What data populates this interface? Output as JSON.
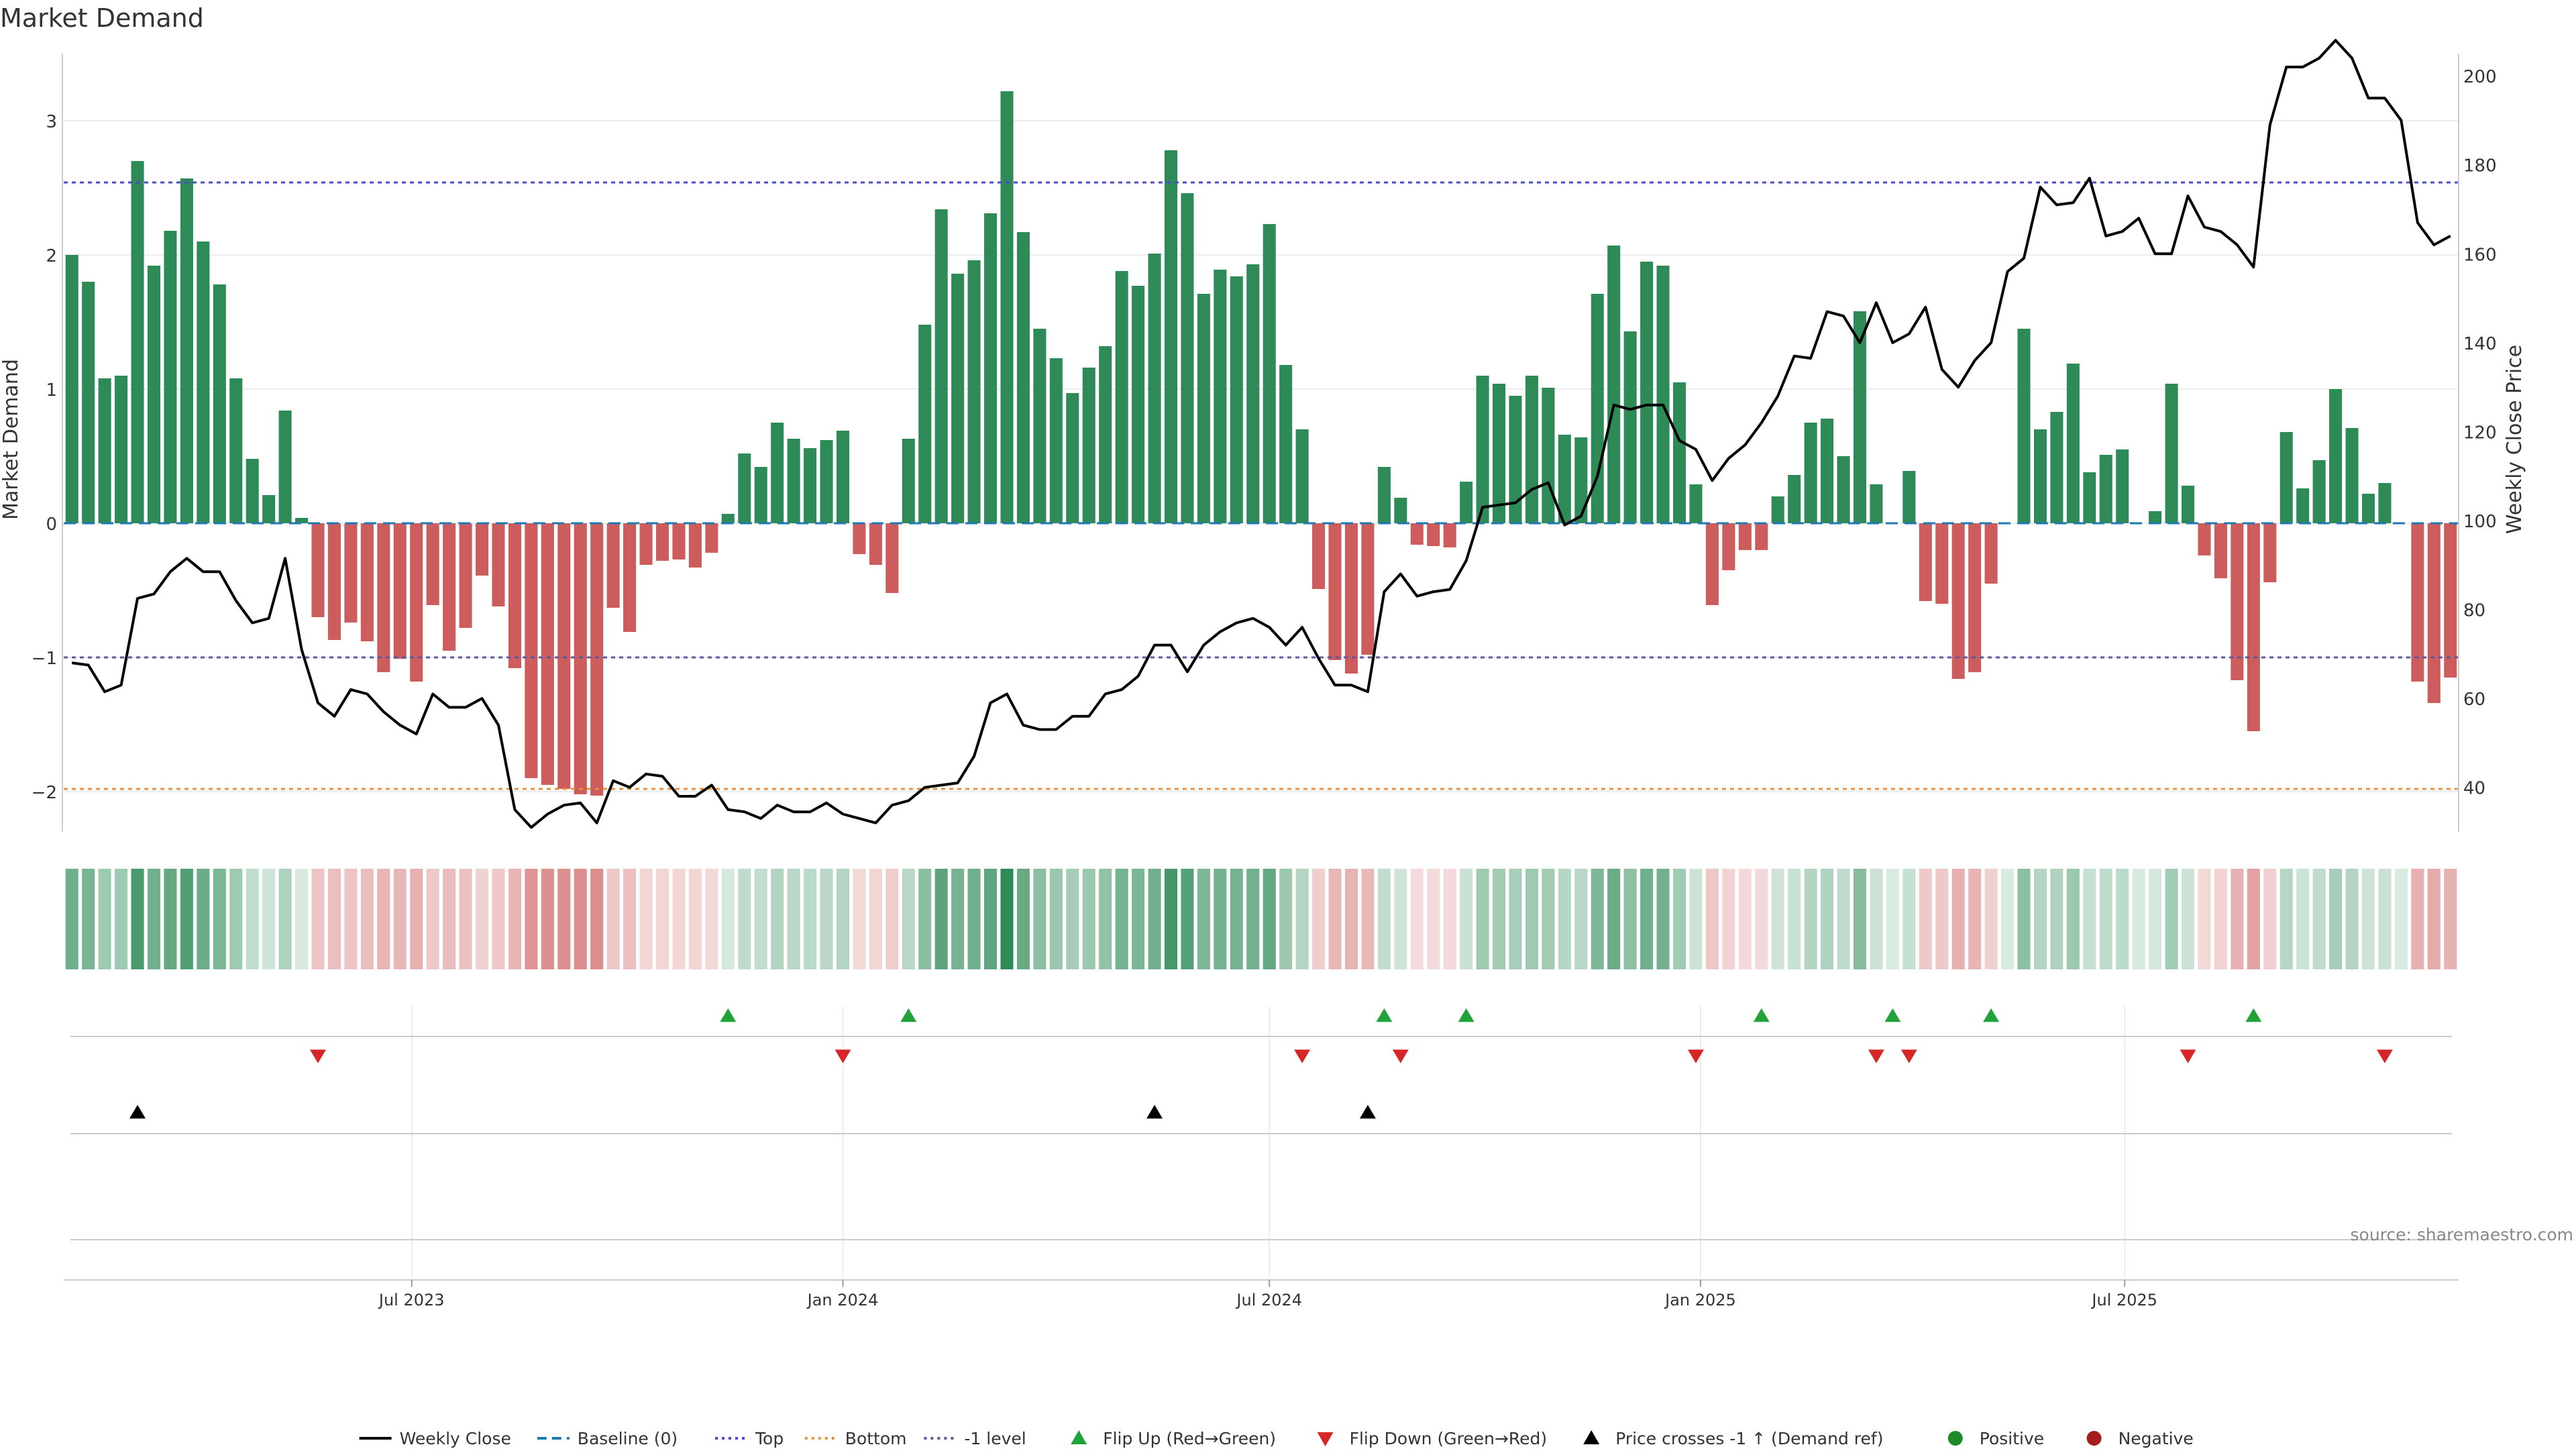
{
  "title": "Market Demand",
  "source": "source: sharemaestro.com",
  "colors": {
    "positive": "#2e8b57",
    "negative": "#cd5c5c",
    "price_line": "#000000",
    "top_line": "#4a4ad6",
    "bottom_line": "#e8923a",
    "minus1_line": "#5a5aa0",
    "baseline": "#1f77b4",
    "flip_up": "#22a33a",
    "flip_down": "#d62728",
    "cross_marker": "#000000",
    "positive_dot": "#1f8a2a",
    "negative_dot": "#a61b1b"
  },
  "legend": [
    {
      "label": "Weekly Close",
      "kind": "line-solid",
      "color": "#000000"
    },
    {
      "label": "Baseline (0)",
      "kind": "line-dash",
      "color": "#1f77b4"
    },
    {
      "label": "Top",
      "kind": "line-dot",
      "color": "#4a4ad6"
    },
    {
      "label": "Bottom",
      "kind": "line-dot",
      "color": "#e8923a"
    },
    {
      "label": "-1 level",
      "kind": "line-dot",
      "color": "#5a5aa0"
    },
    {
      "label": "Flip Up (Red→Green)",
      "kind": "tri-up",
      "color": "#22a33a"
    },
    {
      "label": "Flip Down (Green→Red)",
      "kind": "tri-down",
      "color": "#d62728"
    },
    {
      "label": "Price crosses -1 ↑ (Demand ref)",
      "kind": "tri-up",
      "color": "#000000"
    },
    {
      "label": "Positive",
      "kind": "dot",
      "color": "#1f8a2a"
    },
    {
      "label": "Negative",
      "kind": "dot",
      "color": "#a61b1b"
    }
  ],
  "chart_data": {
    "type": "bar",
    "ylabel_left": "Market Demand",
    "ylabel_right": "Weekly Close Price",
    "ylim_left": [
      -2.3,
      3.5
    ],
    "yticks_left": [
      -2,
      -1,
      0,
      1,
      2,
      3
    ],
    "ylim_right": [
      30,
      205
    ],
    "yticks_right": [
      40,
      60,
      80,
      100,
      120,
      140,
      160,
      180,
      200
    ],
    "levels": {
      "top": 2.54,
      "bottom": -1.98,
      "minus1": -1,
      "baseline": 0
    },
    "grid": true,
    "x_start": "2023-02-06",
    "x_step_days": 7,
    "x_tick_labels": [
      "Jul 2023",
      "Jan 2024",
      "Jul 2024",
      "Jan 2025",
      "Jul 2025"
    ],
    "x_tick_dates": [
      "2023-07-01",
      "2024-01-01",
      "2024-07-01",
      "2025-01-01",
      "2025-07-01"
    ],
    "demand": [
      2.0,
      1.8,
      1.08,
      1.1,
      2.7,
      1.92,
      2.18,
      2.57,
      2.1,
      1.78,
      1.08,
      0.48,
      0.21,
      0.84,
      0.04,
      -0.7,
      -0.87,
      -0.74,
      -0.88,
      -1.11,
      -1.01,
      -1.18,
      -0.61,
      -0.95,
      -0.78,
      -0.39,
      -0.62,
      -1.08,
      -1.9,
      -1.95,
      -1.98,
      -2.02,
      -2.03,
      -0.63,
      -0.81,
      -0.31,
      -0.28,
      -0.27,
      -0.33,
      -0.22,
      0.07,
      0.52,
      0.42,
      0.75,
      0.63,
      0.56,
      0.62,
      0.69,
      -0.23,
      -0.31,
      -0.52,
      0.63,
      1.48,
      2.34,
      1.86,
      1.96,
      2.31,
      3.22,
      2.17,
      1.45,
      1.23,
      0.97,
      1.16,
      1.32,
      1.88,
      1.77,
      2.01,
      2.78,
      2.46,
      1.71,
      1.89,
      1.84,
      1.93,
      2.23,
      1.18,
      0.7,
      -0.49,
      -1.02,
      -1.12,
      -0.98,
      0.42,
      0.19,
      -0.16,
      -0.17,
      -0.18,
      0.31,
      1.1,
      1.04,
      0.95,
      1.1,
      1.01,
      0.66,
      0.64,
      1.71,
      2.07,
      1.43,
      1.95,
      1.92,
      1.05,
      0.29,
      -0.61,
      -0.35,
      -0.2,
      -0.2,
      0.2,
      0.36,
      0.75,
      0.78,
      0.5,
      1.58,
      0.29,
      0.0,
      0.39,
      -0.58,
      -0.6,
      -1.16,
      -1.11,
      -0.45,
      0.0,
      1.45,
      0.7,
      0.83,
      1.19,
      0.38,
      0.51,
      0.55,
      0.0,
      0.09,
      1.04,
      0.28,
      -0.24,
      -0.41,
      -1.17,
      -1.55,
      -0.44,
      0.68,
      0.26,
      0.47,
      1.0,
      0.71,
      0.22,
      0.3,
      0.0,
      -1.18,
      -1.34,
      -1.15
    ],
    "close": [
      68,
      67.5,
      61.5,
      63,
      82.5,
      83.5,
      88.5,
      91.5,
      88.5,
      88.5,
      82,
      77,
      78,
      91.5,
      71,
      59,
      56,
      62,
      61,
      57,
      54,
      52,
      61,
      58,
      58,
      60,
      54,
      35,
      31,
      34,
      36,
      36.5,
      32,
      41.5,
      40,
      43,
      42.5,
      38,
      38,
      40.5,
      35,
      34.5,
      33,
      36,
      34.5,
      34.5,
      36.5,
      34,
      33,
      32,
      36,
      37,
      40,
      40.5,
      41,
      47,
      59,
      61,
      54,
      53,
      53,
      56,
      56,
      61,
      62,
      65,
      72,
      72,
      66,
      72,
      75,
      77,
      78,
      76,
      72,
      76,
      69,
      63,
      63,
      61.5,
      84,
      88,
      83,
      84,
      84.5,
      91,
      103,
      103.5,
      104,
      107,
      108.5,
      99,
      101,
      110,
      126,
      125,
      126,
      126,
      118,
      116,
      109,
      114,
      117,
      122,
      128,
      137,
      136.5,
      147,
      146,
      140,
      149,
      140,
      142,
      148,
      134,
      130,
      136,
      140,
      156,
      159,
      175,
      171,
      171.5,
      177,
      164,
      165,
      168,
      160,
      160,
      173,
      166,
      165,
      162,
      157,
      189,
      202,
      202,
      204,
      208,
      204,
      195,
      195,
      190,
      167,
      162,
      164
    ],
    "flip_up": [
      40,
      51,
      80,
      85,
      103,
      111,
      117,
      133
    ],
    "flip_down": [
      15,
      47,
      75,
      81,
      99,
      110,
      112,
      129,
      141
    ],
    "price_cross_up": [
      4,
      66,
      79
    ]
  }
}
